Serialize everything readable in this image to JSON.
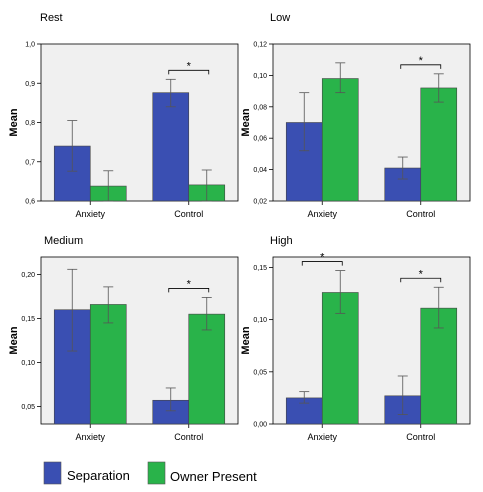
{
  "legend": {
    "items": [
      {
        "label": "Separation",
        "color": "#3a4fb2"
      },
      {
        "label": "Owner Present",
        "color": "#29b34a"
      }
    ]
  },
  "chart_data": [
    {
      "type": "bar",
      "title": "Rest",
      "ylabel": "Mean",
      "ylim": [
        0.6,
        1.0
      ],
      "yticks": [
        "0,6",
        "0,7",
        "0,8",
        "0,9",
        "1,0"
      ],
      "categories": [
        "Anxiety",
        "Control"
      ],
      "series": [
        {
          "name": "Separation",
          "values": [
            0.74,
            0.876
          ],
          "err_low": [
            0.676,
            0.84
          ],
          "err_high": [
            0.805,
            0.91
          ]
        },
        {
          "name": "Owner Present",
          "values": [
            0.638,
            0.641
          ],
          "err_low": [
            0.6,
            0.6
          ],
          "err_high": [
            0.677,
            0.679
          ]
        }
      ],
      "significance": [
        {
          "category": "Control",
          "label": "*"
        }
      ]
    },
    {
      "type": "bar",
      "title": "Low",
      "ylabel": "Mean",
      "ylim": [
        0.02,
        0.12
      ],
      "yticks": [
        "0,02",
        "0,04",
        "0,06",
        "0,08",
        "0,10",
        "0,12"
      ],
      "categories": [
        "Anxiety",
        "Control"
      ],
      "series": [
        {
          "name": "Separation",
          "values": [
            0.07,
            0.041
          ],
          "err_low": [
            0.052,
            0.034
          ],
          "err_high": [
            0.089,
            0.048
          ]
        },
        {
          "name": "Owner Present",
          "values": [
            0.098,
            0.092
          ],
          "err_low": [
            0.089,
            0.083
          ],
          "err_high": [
            0.108,
            0.101
          ]
        }
      ],
      "significance": [
        {
          "category": "Control",
          "label": "*"
        }
      ]
    },
    {
      "type": "bar",
      "title": "Medium",
      "ylabel": "Mean",
      "ylim": [
        0.03,
        0.22
      ],
      "yticks": [
        "0,05",
        "0,10",
        "0,15",
        "0,20"
      ],
      "categories": [
        "Anxiety",
        "Control"
      ],
      "series": [
        {
          "name": "Separation",
          "values": [
            0.16,
            0.057
          ],
          "err_low": [
            0.113,
            0.045
          ],
          "err_high": [
            0.206,
            0.071
          ]
        },
        {
          "name": "Owner Present",
          "values": [
            0.166,
            0.155
          ],
          "err_low": [
            0.145,
            0.137
          ],
          "err_high": [
            0.186,
            0.174
          ]
        }
      ],
      "significance": [
        {
          "category": "Control",
          "label": "*"
        }
      ]
    },
    {
      "type": "bar",
      "title": "High",
      "ylabel": "Mean",
      "ylim": [
        0.0,
        0.16
      ],
      "yticks": [
        "0,00",
        "0,05",
        "0,10",
        "0,15"
      ],
      "categories": [
        "Anxiety",
        "Control"
      ],
      "series": [
        {
          "name": "Separation",
          "values": [
            0.025,
            0.027
          ],
          "err_low": [
            0.02,
            0.009
          ],
          "err_high": [
            0.031,
            0.046
          ]
        },
        {
          "name": "Owner Present",
          "values": [
            0.126,
            0.111
          ],
          "err_low": [
            0.106,
            0.092
          ],
          "err_high": [
            0.147,
            0.131
          ]
        }
      ],
      "significance": [
        {
          "category": "Anxiety",
          "label": "*"
        },
        {
          "category": "Control",
          "label": "*"
        }
      ]
    }
  ]
}
